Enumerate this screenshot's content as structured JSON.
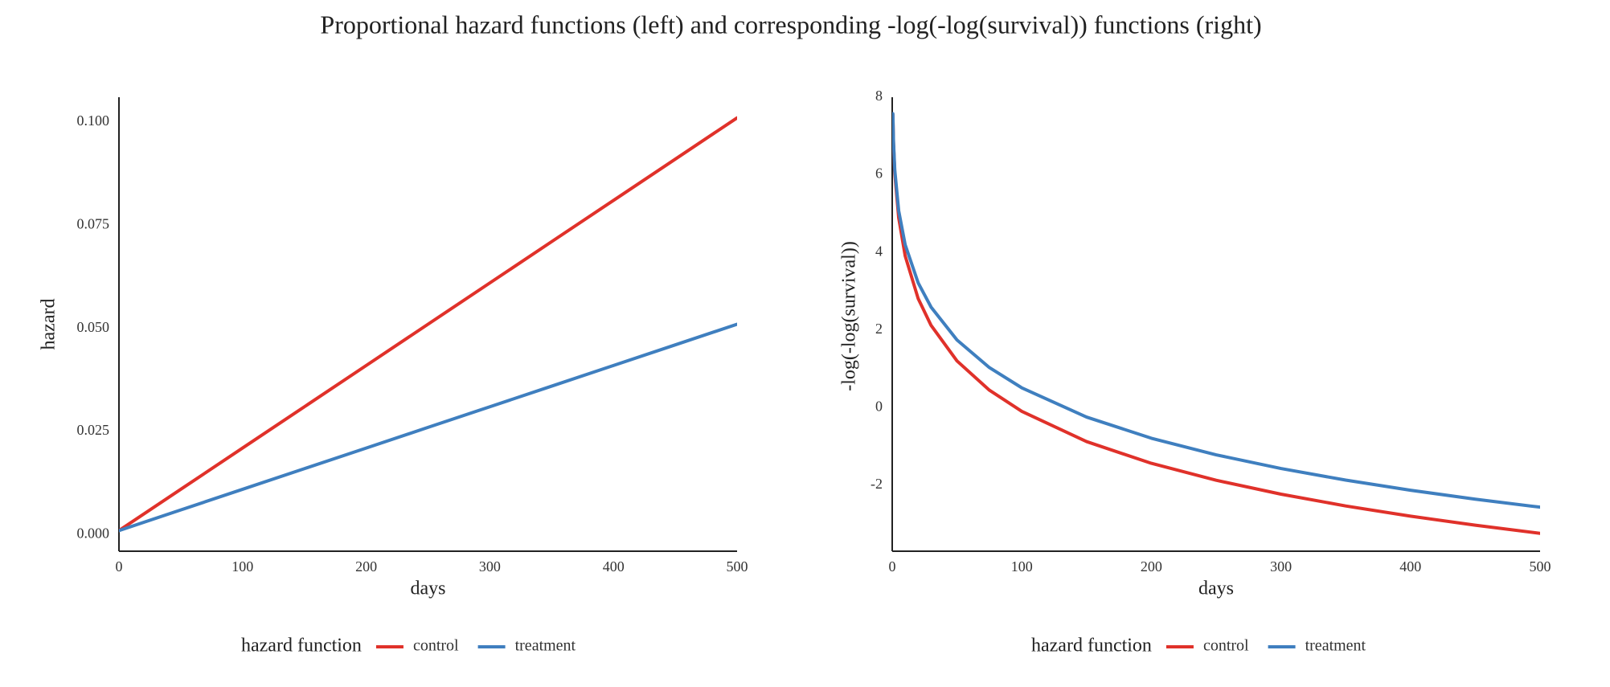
{
  "title": "Proportional hazard functions (left) and corresponding -log(-log(survival)) functions (right)",
  "chart_data": [
    {
      "type": "line",
      "x_label": "days",
      "y_label": "hazard",
      "legend_title": "hazard function",
      "x": [
        0,
        50,
        100,
        150,
        200,
        250,
        300,
        350,
        400,
        450,
        500
      ],
      "series": [
        {
          "name": "control",
          "color": "#e0312a",
          "values": [
            0.001,
            0.011,
            0.021,
            0.031,
            0.041,
            0.051,
            0.061,
            0.071,
            0.081,
            0.091,
            0.101
          ]
        },
        {
          "name": "treatment",
          "color": "#3f7fbf",
          "values": [
            0.001,
            0.006,
            0.011,
            0.016,
            0.021,
            0.026,
            0.031,
            0.036,
            0.041,
            0.046,
            0.051
          ]
        }
      ],
      "xlim": [
        0,
        500
      ],
      "xticks": [
        0,
        100,
        200,
        300,
        400,
        500
      ],
      "ylim": [
        -0.004,
        0.106
      ],
      "yticks": [
        {
          "value": 0,
          "label": "0.000"
        },
        {
          "value": 0.025,
          "label": "0.025"
        },
        {
          "value": 0.05,
          "label": "0.050"
        },
        {
          "value": 0.075,
          "label": "0.075"
        },
        {
          "value": 0.1,
          "label": "0.100"
        }
      ],
      "grid": false,
      "legend": "bottom"
    },
    {
      "type": "line",
      "x_label": "days",
      "y_label": "-log(-log(survival))",
      "legend_title": "hazard function",
      "x": [
        0.5,
        1,
        2,
        5,
        10,
        20,
        30,
        50,
        75,
        100,
        150,
        200,
        250,
        300,
        350,
        400,
        450,
        500
      ],
      "series": [
        {
          "name": "control",
          "color": "#e0312a",
          "values": [
            7.552,
            6.812,
            6.032,
            4.893,
            3.912,
            2.813,
            2.12,
            1.204,
            0.45,
            -0.095,
            -0.875,
            -1.435,
            -1.872,
            -2.23,
            -2.534,
            -2.797,
            -3.03,
            -3.239
          ]
        },
        {
          "name": "treatment",
          "color": "#3f7fbf",
          "values": [
            7.576,
            6.859,
            6.119,
            5.075,
            4.2,
            3.219,
            2.59,
            1.743,
            1.032,
            0.511,
            -0.243,
            -0.788,
            -1.216,
            -1.569,
            -1.868,
            -2.128,
            -2.359,
            -2.565
          ]
        }
      ],
      "xlim": [
        0,
        500
      ],
      "xticks": [
        0,
        100,
        200,
        300,
        400,
        500
      ],
      "ylim": [
        -3.7,
        8
      ],
      "yticks": [
        -2,
        0,
        2,
        4,
        6,
        8
      ],
      "grid": false,
      "legend": "bottom"
    }
  ]
}
